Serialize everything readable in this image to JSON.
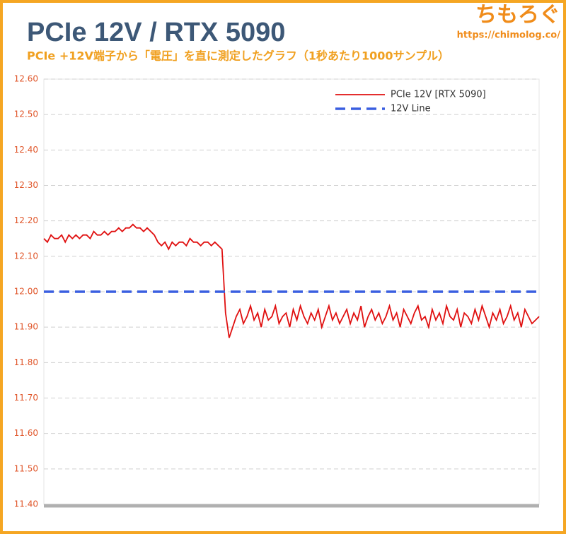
{
  "chart_data": {
    "type": "line",
    "title": "PCIe 12V / RTX 5090",
    "subtitle": "PCIe +12V端子から「電圧」を直に測定したグラフ（1秒あたり1000サンプル）",
    "annotations": [
      "ちもろぐ",
      "https://chimolog.co/"
    ],
    "ylim": [
      11.4,
      12.6
    ],
    "yticks": [
      {
        "value": 11.4,
        "label": "11.40"
      },
      {
        "value": 11.5,
        "label": "11.50"
      },
      {
        "value": 11.6,
        "label": "11.60"
      },
      {
        "value": 11.7,
        "label": "11.70"
      },
      {
        "value": 11.8,
        "label": "11.80"
      },
      {
        "value": 11.9,
        "label": "11.90"
      },
      {
        "value": 12.0,
        "label": "12.00"
      },
      {
        "value": 12.1,
        "label": "12.10"
      },
      {
        "value": 12.2,
        "label": "12.20"
      },
      {
        "value": 12.3,
        "label": "12.30"
      },
      {
        "value": 12.4,
        "label": "12.40"
      },
      {
        "value": 12.5,
        "label": "12.50"
      },
      {
        "value": 12.6,
        "label": "12.60"
      }
    ],
    "grid": true,
    "legend": "upper right",
    "series": [
      {
        "name": "PCIe 12V [RTX 5090]",
        "color": "#e01010",
        "values": [
          12.15,
          12.14,
          12.16,
          12.15,
          12.15,
          12.16,
          12.14,
          12.16,
          12.15,
          12.16,
          12.15,
          12.16,
          12.16,
          12.15,
          12.17,
          12.16,
          12.16,
          12.17,
          12.16,
          12.17,
          12.17,
          12.18,
          12.17,
          12.18,
          12.18,
          12.19,
          12.18,
          12.18,
          12.17,
          12.18,
          12.17,
          12.16,
          12.14,
          12.13,
          12.14,
          12.12,
          12.14,
          12.13,
          12.14,
          12.14,
          12.13,
          12.15,
          12.14,
          12.14,
          12.13,
          12.14,
          12.14,
          12.13,
          12.14,
          12.13,
          12.12,
          11.94,
          11.87,
          11.9,
          11.93,
          11.95,
          11.91,
          11.93,
          11.96,
          11.92,
          11.94,
          11.9,
          11.95,
          11.92,
          11.93,
          11.96,
          11.91,
          11.93,
          11.94,
          11.9,
          11.95,
          11.92,
          11.96,
          11.93,
          11.91,
          11.94,
          11.92,
          11.95,
          11.9,
          11.93,
          11.96,
          11.92,
          11.94,
          11.91,
          11.93,
          11.95,
          11.91,
          11.94,
          11.92,
          11.96,
          11.9,
          11.93,
          11.95,
          11.92,
          11.94,
          11.91,
          11.93,
          11.96,
          11.92,
          11.94,
          11.9,
          11.95,
          11.93,
          11.91,
          11.94,
          11.96,
          11.92,
          11.93,
          11.9,
          11.95,
          11.92,
          11.94,
          11.91,
          11.96,
          11.93,
          11.92,
          11.95,
          11.9,
          11.94,
          11.93,
          11.91,
          11.95,
          11.92,
          11.96,
          11.93,
          11.9,
          11.94,
          11.92,
          11.95,
          11.91,
          11.93,
          11.96,
          11.92,
          11.94,
          11.9,
          11.95,
          11.93,
          11.91,
          11.92,
          11.93
        ]
      }
    ],
    "hlines": [
      {
        "name": "12V Line",
        "value": 12.0,
        "color": "#3a5fe0",
        "dashed": true
      }
    ]
  }
}
